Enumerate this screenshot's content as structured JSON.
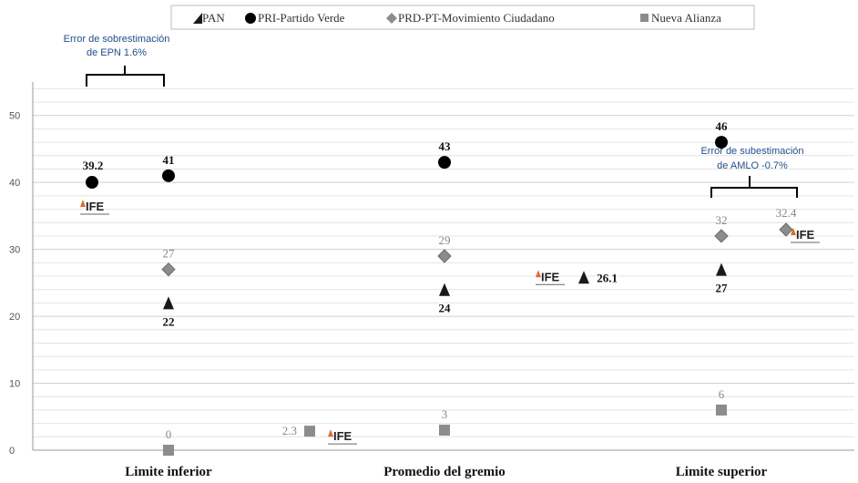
{
  "chart_data": {
    "type": "scatter",
    "categories": [
      "Limite inferior",
      "Promedio del gremio",
      "Limite superior"
    ],
    "ylim": [
      0,
      55
    ],
    "yticks": [
      0,
      10,
      20,
      30,
      40,
      50
    ],
    "legend_position": "top",
    "series": [
      {
        "name": "PAN",
        "marker": "triangle",
        "color": "#1a1a1a",
        "values": [
          22,
          24,
          27
        ]
      },
      {
        "name": "PRI-Partido Verde",
        "marker": "circle",
        "color": "#000000",
        "values": [
          41,
          43,
          46
        ]
      },
      {
        "name": "PRD-PT-Movimiento Ciudadano",
        "marker": "diamond",
        "color": "#8c8c8c",
        "values": [
          27,
          29,
          32
        ]
      },
      {
        "name": "Nueva Alianza",
        "marker": "square",
        "color": "#8c8c8c",
        "values": [
          0,
          3,
          6
        ]
      }
    ],
    "official_results": {
      "logo_text": "IFE",
      "points": [
        {
          "series": "PRI-Partido Verde",
          "value": 39.2
        },
        {
          "series": "PAN",
          "value": 26.1
        },
        {
          "series": "PRD-PT-Movimiento Ciudadano",
          "value": 32.4
        },
        {
          "series": "Nueva Alianza",
          "value": 2.3
        }
      ]
    },
    "annotations": [
      {
        "text_line1": "Error de sobrestimación",
        "text_line2": "de EPN 1.6%"
      },
      {
        "text_line1": "Error de subestimación",
        "text_line2": "de AMLO -0.7%"
      }
    ]
  }
}
